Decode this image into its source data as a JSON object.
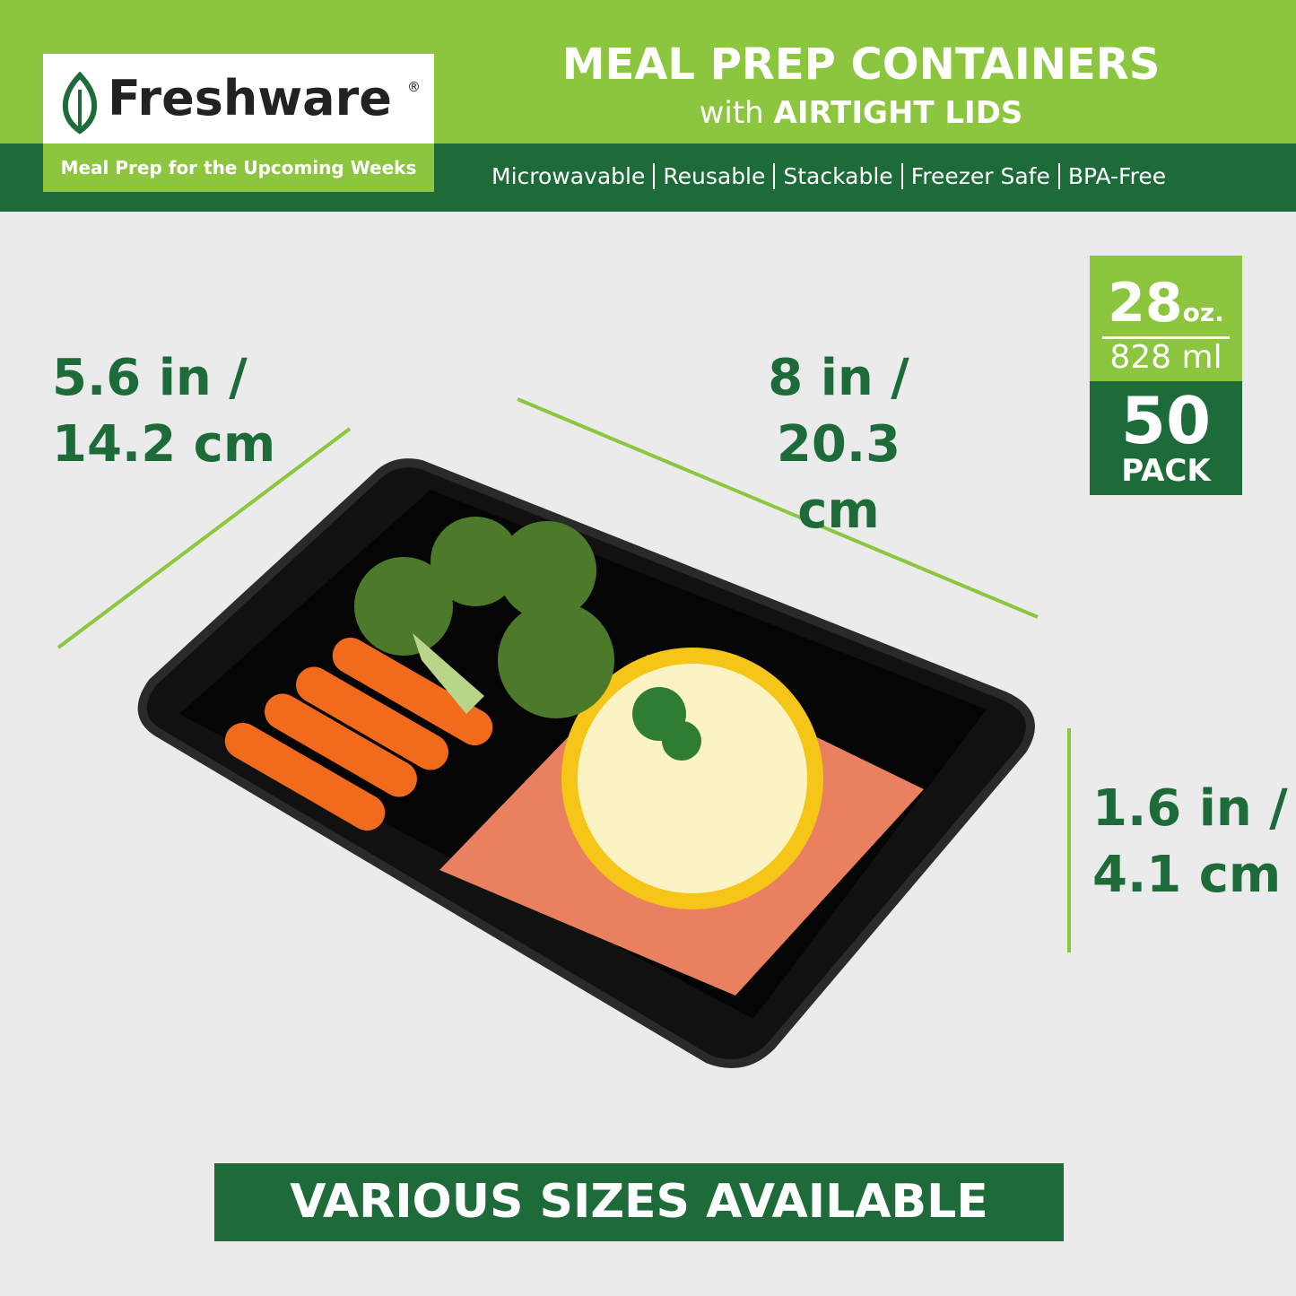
{
  "header": {
    "brand": "Freshware",
    "registered": "®",
    "tagline": "Meal Prep for the Upcoming Weeks",
    "title": "MEAL PREP CONTAINERS",
    "subtitle_prefix": "with",
    "subtitle_emphasis": "AIRTIGHT LIDS",
    "features": [
      "Microwavable",
      "Reusable",
      "Stackable",
      "Freezer Safe",
      "BPA-Free"
    ]
  },
  "dimensions": {
    "width": {
      "imperial": "5.6 in /",
      "metric": "14.2 cm"
    },
    "length": {
      "imperial": "8 in /",
      "metric": "20.3 cm"
    },
    "height": {
      "imperial": "1.6 in /",
      "metric": "4.1 cm"
    }
  },
  "badge": {
    "capacity": "28",
    "capacity_unit": "oz.",
    "metric_capacity": "828 ml",
    "pack_count": "50",
    "pack_label": "PACK"
  },
  "footer": {
    "banner": "VARIOUS SIZES AVAILABLE"
  }
}
